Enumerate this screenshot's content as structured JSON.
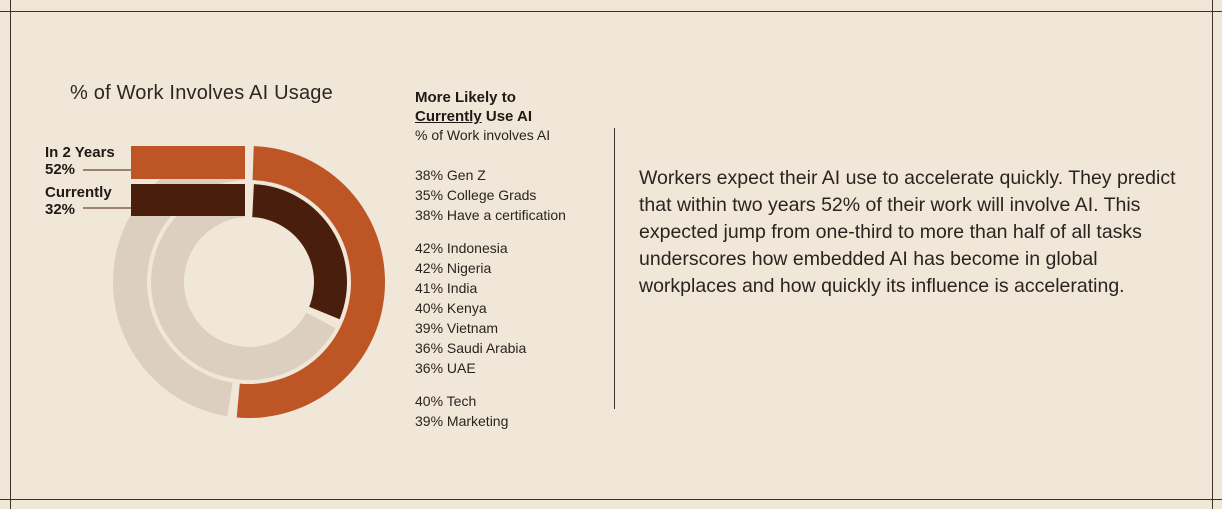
{
  "colors": {
    "background": "#f0e7d8",
    "in_2_years": "#bd5525",
    "currently": "#4a1e0c",
    "remainder": "#ddcfc0",
    "text": "#2a2420"
  },
  "chart_data": {
    "type": "donut",
    "title": "% of Work Involves AI Usage",
    "series": [
      {
        "name": "In 2 Years",
        "value": 52,
        "label": "52%"
      },
      {
        "name": "Currently",
        "value": 32,
        "label": "32%"
      }
    ]
  },
  "sidebar": {
    "heading_line1": "More Likely to",
    "heading_under": "Currently",
    "heading_rest": " Use AI",
    "subheading": "% of Work involves AI",
    "groups": [
      [
        "38% Gen Z",
        "35% College Grads",
        "38% Have a certification"
      ],
      [
        "42% Indonesia",
        "42% Nigeria",
        "41% India",
        "40% Kenya",
        "39% Vietnam",
        "36% Saudi Arabia",
        "36% UAE"
      ],
      [
        "40% Tech",
        "39% Marketing"
      ]
    ]
  },
  "body_text": "Workers expect their AI use to accelerate quickly. They predict that within two years 52% of their work will involve AI. This expected jump from one-third to more than half of all tasks underscores how embedded AI has become in global workplaces and how quickly its influence is accelerating."
}
